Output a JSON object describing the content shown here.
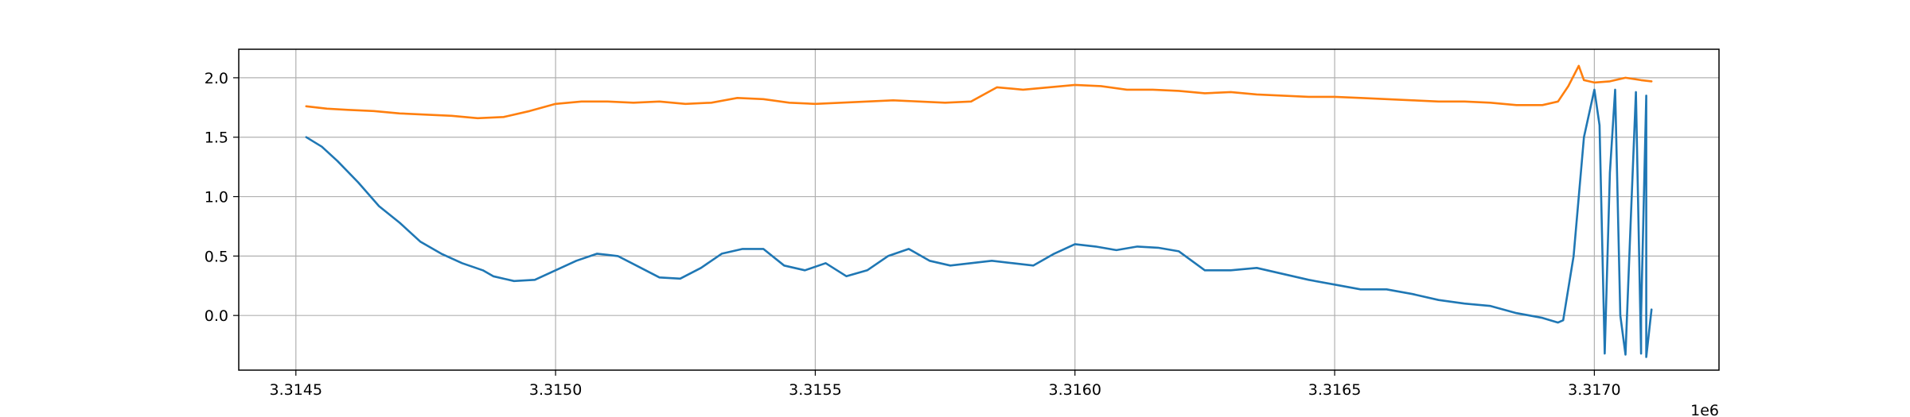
{
  "chart_data": {
    "type": "line",
    "title": "",
    "xlabel": "",
    "ylabel": "",
    "x_offset_label": "1e6",
    "xlim": [
      3.31439,
      3.31724
    ],
    "ylim": [
      -0.46,
      2.24
    ],
    "grid": true,
    "legend": "none",
    "x_ticks": [
      3.3145,
      3.315,
      3.3155,
      3.316,
      3.3165,
      3.317
    ],
    "x_tick_labels": [
      "3.3145",
      "3.3150",
      "3.3155",
      "3.3160",
      "3.3165",
      "3.3170"
    ],
    "y_ticks": [
      0.0,
      0.5,
      1.0,
      1.5,
      2.0
    ],
    "y_tick_labels": [
      "0.0",
      "0.5",
      "1.0",
      "1.5",
      "2.0"
    ],
    "series": [
      {
        "color": "#1f77b4",
        "x": [
          3.31452,
          3.31455,
          3.31458,
          3.31462,
          3.31466,
          3.3147,
          3.31474,
          3.31478,
          3.31482,
          3.31486,
          3.31488,
          3.31492,
          3.31496,
          3.315,
          3.31504,
          3.31508,
          3.31512,
          3.31516,
          3.3152,
          3.31524,
          3.31528,
          3.31532,
          3.31536,
          3.3154,
          3.31544,
          3.31548,
          3.31552,
          3.31556,
          3.3156,
          3.31564,
          3.31568,
          3.31572,
          3.31576,
          3.3158,
          3.31584,
          3.31588,
          3.31592,
          3.31596,
          3.316,
          3.31604,
          3.31608,
          3.31612,
          3.31616,
          3.3162,
          3.31625,
          3.3163,
          3.31635,
          3.3164,
          3.31645,
          3.3165,
          3.31655,
          3.3166,
          3.31665,
          3.3167,
          3.31675,
          3.3168,
          3.31685,
          3.3169,
          3.31693,
          3.31694,
          3.31696,
          3.31698,
          3.317,
          3.31701,
          3.31702,
          3.31703,
          3.31704,
          3.31705,
          3.31706,
          3.31707,
          3.31708,
          3.31709,
          3.31709,
          3.3171,
          3.3171,
          3.31711
        ],
        "y": [
          1.5,
          1.42,
          1.3,
          1.12,
          0.92,
          0.78,
          0.62,
          0.52,
          0.44,
          0.38,
          0.33,
          0.29,
          0.3,
          0.38,
          0.46,
          0.52,
          0.5,
          0.41,
          0.32,
          0.31,
          0.4,
          0.52,
          0.56,
          0.56,
          0.42,
          0.38,
          0.44,
          0.33,
          0.38,
          0.5,
          0.56,
          0.46,
          0.42,
          0.44,
          0.46,
          0.44,
          0.42,
          0.52,
          0.6,
          0.58,
          0.55,
          0.58,
          0.57,
          0.54,
          0.38,
          0.38,
          0.4,
          0.35,
          0.3,
          0.26,
          0.22,
          0.22,
          0.18,
          0.13,
          0.1,
          0.08,
          0.02,
          -0.02,
          -0.06,
          -0.04,
          0.5,
          1.5,
          1.9,
          1.6,
          -0.32,
          1.2,
          1.9,
          0.0,
          -0.33,
          0.8,
          1.88,
          -0.32,
          0.0,
          1.85,
          -0.35,
          0.05
        ]
      },
      {
        "color": "#ff7f0e",
        "x": [
          3.31452,
          3.31456,
          3.3146,
          3.31465,
          3.3147,
          3.31475,
          3.3148,
          3.31485,
          3.3149,
          3.31495,
          3.315,
          3.31505,
          3.3151,
          3.31515,
          3.3152,
          3.31525,
          3.3153,
          3.31535,
          3.3154,
          3.31545,
          3.3155,
          3.31555,
          3.3156,
          3.31565,
          3.3157,
          3.31575,
          3.3158,
          3.31585,
          3.3159,
          3.31595,
          3.316,
          3.31605,
          3.3161,
          3.31615,
          3.3162,
          3.31625,
          3.3163,
          3.31635,
          3.3164,
          3.31645,
          3.3165,
          3.31655,
          3.3166,
          3.31665,
          3.3167,
          3.31675,
          3.3168,
          3.31685,
          3.3169,
          3.31693,
          3.31695,
          3.31697,
          3.31698,
          3.317,
          3.31703,
          3.31706,
          3.31709,
          3.31711
        ],
        "y": [
          1.76,
          1.74,
          1.73,
          1.72,
          1.7,
          1.69,
          1.68,
          1.66,
          1.67,
          1.72,
          1.78,
          1.8,
          1.8,
          1.79,
          1.8,
          1.78,
          1.79,
          1.83,
          1.82,
          1.79,
          1.78,
          1.79,
          1.8,
          1.81,
          1.8,
          1.79,
          1.8,
          1.92,
          1.9,
          1.92,
          1.94,
          1.93,
          1.9,
          1.9,
          1.89,
          1.87,
          1.88,
          1.86,
          1.85,
          1.84,
          1.84,
          1.83,
          1.82,
          1.81,
          1.8,
          1.8,
          1.79,
          1.77,
          1.77,
          1.8,
          1.93,
          2.1,
          1.98,
          1.96,
          1.97,
          2.0,
          1.98,
          1.97
        ]
      }
    ]
  }
}
